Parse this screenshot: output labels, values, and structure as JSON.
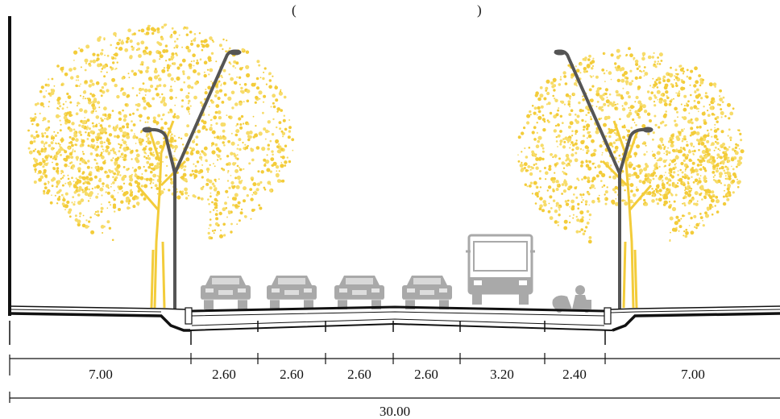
{
  "header": {
    "partial_title": "(",
    "partial_title_end": ")"
  },
  "colors": {
    "tree": "#f3cc3a",
    "tree_light": "#f7dc6a",
    "vehicle": "#a9a9a9",
    "pole": "#555555",
    "ink": "#111111"
  },
  "segments": [
    {
      "label": "7.00",
      "meaning": "sidewalk-left"
    },
    {
      "label": "2.60",
      "meaning": "lane-1"
    },
    {
      "label": "2.60",
      "meaning": "lane-2"
    },
    {
      "label": "2.60",
      "meaning": "lane-3"
    },
    {
      "label": "2.60",
      "meaning": "lane-4"
    },
    {
      "label": "3.20",
      "meaning": "bus-lane"
    },
    {
      "label": "2.40",
      "meaning": "bike-lane"
    },
    {
      "label": "7.00",
      "meaning": "sidewalk-right"
    }
  ],
  "total": {
    "label": "30.00"
  },
  "icons": {
    "tree": "tree-icon",
    "streetlight": "streetlight-icon",
    "car": "car-icon",
    "bus": "bus-icon",
    "scooter": "scooter-icon"
  }
}
